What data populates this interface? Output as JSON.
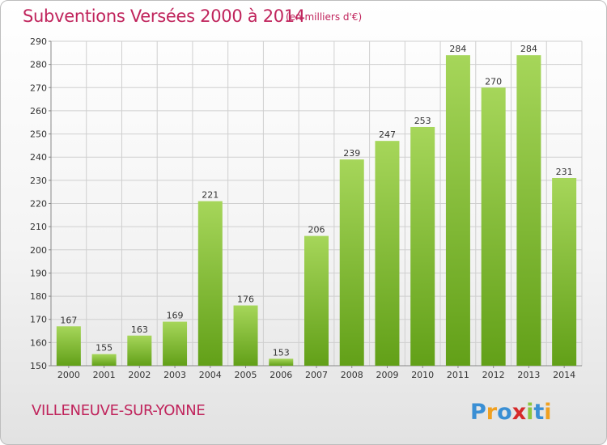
{
  "header": {
    "title": "Subventions Versées 2000 à 2014",
    "unit": "(en milliers d'€)"
  },
  "footer": {
    "commune": "VILLENEUVE-SUR-YONNE",
    "logo_text": "Proxiti"
  },
  "colors": {
    "title": "#c0245c",
    "bar_light": "#a6d65a",
    "bar_dark": "#62a018",
    "grid": "#cfcfcf"
  },
  "chart_data": {
    "type": "bar",
    "title": "Subventions Versées 2000 à 2014",
    "subtitle": "(en milliers d'€)",
    "xlabel": "",
    "ylabel": "",
    "categories": [
      "2000",
      "2001",
      "2002",
      "2003",
      "2004",
      "2005",
      "2006",
      "2007",
      "2008",
      "2009",
      "2010",
      "2011",
      "2012",
      "2013",
      "2014"
    ],
    "values": [
      167,
      155,
      163,
      169,
      221,
      176,
      153,
      206,
      239,
      247,
      253,
      284,
      270,
      284,
      231
    ],
    "ylim": [
      150,
      290
    ],
    "yticks": [
      150,
      160,
      170,
      180,
      190,
      200,
      210,
      220,
      230,
      240,
      250,
      260,
      270,
      280,
      290
    ],
    "grid": true,
    "data_labels": true
  }
}
